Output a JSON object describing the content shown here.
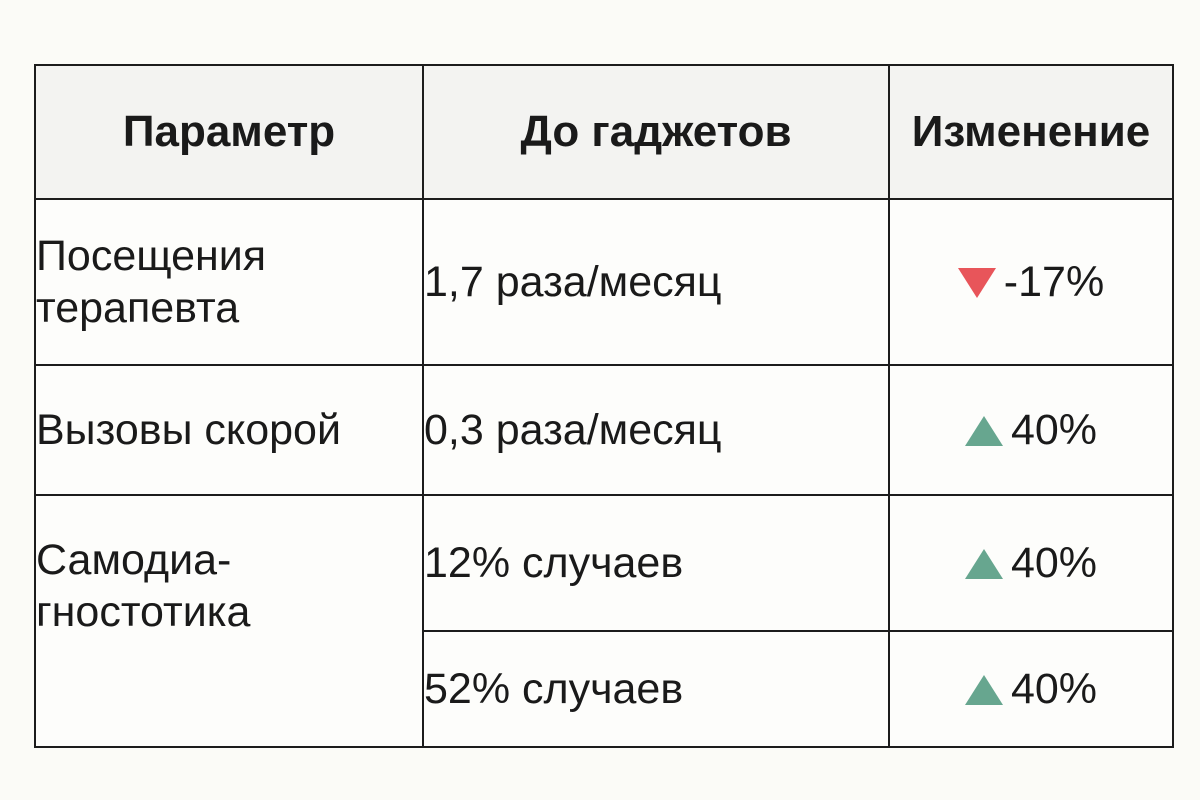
{
  "table": {
    "headers": [
      "Параметр",
      "До гаджетов",
      "Изменение"
    ],
    "rows": [
      {
        "parameter": "Посещения\nтерапевта",
        "before": "1,7 раза/месяц",
        "change": "-17%",
        "direction": "down"
      },
      {
        "parameter": "Вызовы скорой",
        "before": "0,3 раза/месяц",
        "change": "40%",
        "direction": "up"
      },
      {
        "parameter": "Самодиа-\nгностотика",
        "before": "12% случаев",
        "change": "40%",
        "direction": "up"
      },
      {
        "parameter": "",
        "before": "52% случаев",
        "change": "40%",
        "direction": "up"
      }
    ]
  },
  "colors": {
    "down": "#e8555a",
    "up": "#67a68f"
  },
  "icons": {
    "down": "triangle-down-icon",
    "up": "triangle-up-icon"
  }
}
